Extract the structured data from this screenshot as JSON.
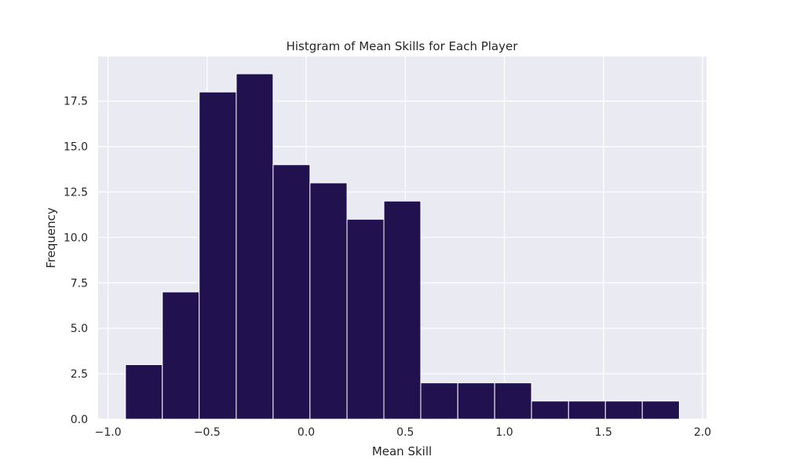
{
  "chart_data": {
    "type": "bar",
    "title": "Histgram of Mean Skills for Each Player",
    "xlabel": "Mean Skill",
    "ylabel": "Frequency",
    "xlim": [
      -1.05,
      2.02
    ],
    "ylim": [
      0,
      19.95
    ],
    "xticks": [
      -1.0,
      -0.5,
      0.0,
      0.5,
      1.0,
      1.5,
      2.0
    ],
    "xtick_labels": [
      "−1.0",
      "−0.5",
      "0.0",
      "0.5",
      "1.0",
      "1.5",
      "2.0"
    ],
    "yticks": [
      0,
      2.5,
      5,
      7.5,
      10,
      12.5,
      15,
      17.5
    ],
    "ytick_labels": [
      "0.0",
      "2.5",
      "5.0",
      "7.5",
      "10.0",
      "12.5",
      "15.0",
      "17.5"
    ],
    "bin_edges": [
      -0.912,
      -0.726,
      -0.54,
      -0.353,
      -0.167,
      0.019,
      0.206,
      0.392,
      0.578,
      0.765,
      0.951,
      1.137,
      1.324,
      1.51,
      1.696,
      1.883
    ],
    "values": [
      3,
      7,
      18,
      19,
      14,
      13,
      11,
      12,
      2,
      2,
      2,
      1,
      1,
      1,
      1
    ],
    "grid": true,
    "colors": {
      "bar": "#21124f",
      "bar_edge": "#ffffff",
      "plot_bg": "#eaeaf2",
      "grid": "#ffffff",
      "text": "#262626"
    }
  }
}
